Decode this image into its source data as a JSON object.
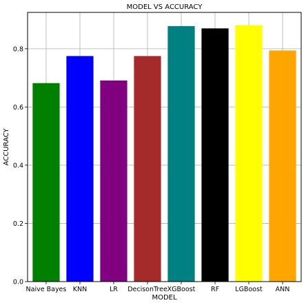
{
  "chart_data": {
    "type": "bar",
    "title": "MODEL VS ACCURACY",
    "xlabel": "MODEL",
    "ylabel": "ACCURACY",
    "categories": [
      "Naive Bayes",
      "KNN",
      "LR",
      "DecisonTree",
      "XGBoost",
      "RF",
      "LGBoost",
      "ANN"
    ],
    "values": [
      0.682,
      0.775,
      0.691,
      0.775,
      0.878,
      0.87,
      0.881,
      0.794
    ],
    "colors": [
      "#008000",
      "#0000ff",
      "#800080",
      "#a52a2a",
      "#008080",
      "#000000",
      "#ffff00",
      "#ffa500"
    ],
    "ylim": [
      0,
      0.925
    ],
    "yticks": [
      0.0,
      0.2,
      0.4,
      0.6,
      0.8
    ],
    "ytick_labels": [
      "0.0",
      "0.2",
      "0.4",
      "0.6",
      "0.8"
    ],
    "grid": true,
    "legend": false
  }
}
